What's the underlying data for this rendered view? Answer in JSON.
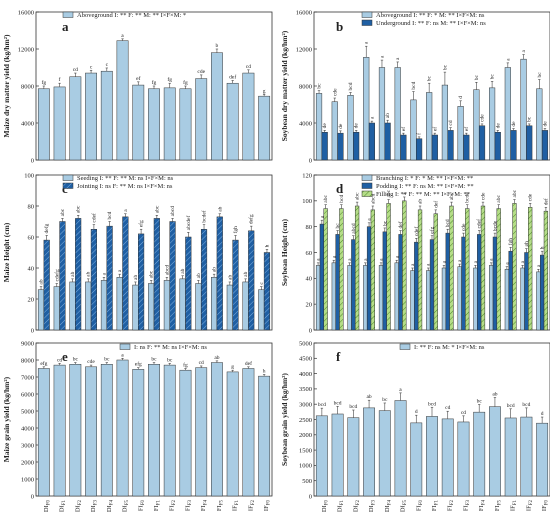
{
  "chart_data": [
    {
      "panel": "a",
      "type": "bar",
      "ylabel": "Maize dry matter yield (kg/hm²)",
      "ylim": [
        0,
        16000
      ],
      "yticks": [
        0,
        4000,
        8000,
        12000,
        16000
      ],
      "grid": false,
      "legend_position": "top",
      "series": [
        {
          "name": "Aboveground",
          "stats": "I: **  F: **  M: **  I×F×M: *",
          "values": [
            7700,
            7900,
            9000,
            9400,
            9600,
            12900,
            8100,
            7700,
            7800,
            7700,
            8800,
            11600,
            8300,
            9400,
            6900
          ],
          "errors": [
            300,
            400,
            400,
            300,
            350,
            200,
            350,
            300,
            500,
            300,
            400,
            400,
            300,
            350,
            200
          ],
          "labels": [
            "fg",
            "f",
            "cd",
            "c",
            "c",
            "a",
            "ef",
            "fg",
            "fg",
            "fg",
            "cde",
            "b",
            "def",
            "cd",
            "g"
          ]
        }
      ]
    },
    {
      "panel": "b",
      "type": "bar",
      "ylabel": "Soybean dry matter yield (kg/hm²)",
      "ylim": [
        0,
        16000
      ],
      "yticks": [
        0,
        4000,
        8000,
        12000,
        16000
      ],
      "grid": false,
      "legend_position": "top",
      "series": [
        {
          "name": "Aboveground",
          "stats": "I: **  F: *   M: **  I×F×M: ns",
          "values": [
            7200,
            6300,
            7000,
            11100,
            10000,
            10000,
            6500,
            7300,
            8100,
            5800,
            7600,
            7800,
            10000,
            10900,
            7700
          ],
          "errors": [
            300,
            400,
            300,
            1200,
            800,
            600,
            900,
            1000,
            1400,
            600,
            800,
            700,
            500,
            500,
            1000
          ],
          "labels": [
            "bc",
            "cde",
            "bcd",
            "a",
            "a",
            "a",
            "bcd",
            "bc",
            "bc",
            "d",
            "bc",
            "bc",
            "a",
            "a",
            "bc"
          ]
        },
        {
          "name": "Underground",
          "stats": "I: **  F: ns  M: **  I×F×M: ns",
          "values": [
            3000,
            2900,
            3000,
            4000,
            4000,
            2700,
            2300,
            2700,
            3200,
            2700,
            3700,
            3000,
            3200,
            3700,
            3200
          ],
          "errors": [
            200,
            250,
            200,
            200,
            300,
            200,
            200,
            200,
            300,
            200,
            200,
            200,
            200,
            200,
            200
          ],
          "labels": [
            "de",
            "de",
            "de",
            "a",
            "ab",
            "ef",
            "f",
            "ef",
            "cd",
            "ef",
            "cde",
            "de",
            "de",
            "bc",
            "de"
          ]
        }
      ]
    },
    {
      "panel": "c",
      "type": "bar",
      "ylabel": "Maize Height (cm)",
      "ylim": [
        0,
        100
      ],
      "yticks": [
        0,
        20,
        40,
        60,
        80,
        100
      ],
      "grid": false,
      "legend_position": "top",
      "series": [
        {
          "name": "Seeding",
          "stats": "I: **  F: **  M: ns   I×F×M: ns",
          "values": [
            26,
            28,
            31,
            31,
            32,
            34,
            29,
            30,
            32,
            33,
            30,
            34,
            29,
            31,
            26
          ],
          "errors": [
            2,
            2,
            2,
            2,
            2,
            2,
            2,
            2,
            2,
            2,
            2,
            2,
            2,
            2,
            2
          ],
          "labels": [
            "ab",
            "cdefg",
            "ab",
            "ab",
            "a",
            "a",
            "ab",
            "abc",
            "abcd",
            "ab",
            "ab",
            "ab",
            "ab",
            "ab",
            "c"
          ]
        },
        {
          "name": "Jointing",
          "stats": "I: ns  F: **  M: ns   I×F×M: ns",
          "values": [
            58,
            70,
            72,
            65,
            67,
            73,
            62,
            72,
            70,
            60,
            65,
            73,
            58,
            64,
            50
          ],
          "errors": [
            3,
            2,
            2,
            3,
            3,
            2,
            3,
            2,
            2,
            3,
            3,
            2,
            3,
            3,
            2
          ],
          "labels": [
            "defg",
            "abc",
            "abc",
            "cdef",
            "bcd",
            "a",
            "efg",
            "abc",
            "abcd",
            "abcdef",
            "bcdef",
            "ab",
            "fgh",
            "defg",
            "h"
          ]
        }
      ]
    },
    {
      "panel": "d",
      "type": "bar",
      "ylabel": "Soybean Height (cm)",
      "ylim": [
        0,
        120
      ],
      "yticks": [
        0,
        20,
        40,
        60,
        80,
        100,
        120
      ],
      "grid": false,
      "legend_position": "top",
      "series": [
        {
          "name": "Branching",
          "stats": "I: *   F: *   M: **  I×F×M: **",
          "values": [
            50,
            52,
            50,
            50,
            50,
            52,
            46,
            46,
            48,
            49,
            48,
            50,
            47,
            48,
            45
          ],
          "errors": [
            2,
            2,
            2,
            2,
            2,
            2,
            2,
            2,
            2,
            2,
            2,
            2,
            2,
            2,
            2
          ],
          "labels": [
            "a",
            "a",
            "a",
            "a",
            "a",
            "a",
            "a",
            "a",
            "a",
            "a",
            "a",
            "a",
            "a",
            "a",
            "a"
          ]
        },
        {
          "name": "Podding",
          "stats": "I: **  F: ns  M: **  I×F×M: **",
          "values": [
            82,
            74,
            70,
            80,
            76,
            74,
            68,
            70,
            75,
            72,
            74,
            72,
            61,
            60,
            58
          ],
          "errors": [
            3,
            3,
            3,
            3,
            3,
            3,
            3,
            3,
            3,
            3,
            3,
            3,
            3,
            3,
            3
          ],
          "labels": [
            "a",
            "bc",
            "abcd",
            "a",
            "bc",
            "def",
            "cdef",
            "efg",
            "bcd",
            "cde",
            "cdef",
            "bcde",
            "fgh",
            "gh",
            "h"
          ]
        },
        {
          "name": "Filling",
          "stats": "I: **  F: **  M: **  I×F×M: **",
          "values": [
            94,
            94,
            96,
            93,
            98,
            100,
            93,
            90,
            96,
            94,
            96,
            94,
            98,
            95,
            92
          ],
          "errors": [
            3,
            3,
            3,
            3,
            3,
            3,
            3,
            3,
            3,
            3,
            3,
            3,
            3,
            3,
            3
          ],
          "labels": [
            "abc",
            "bcd",
            "abc",
            "abcd",
            "abc",
            "a",
            "ab",
            "def",
            "abc",
            "bcde",
            "cde",
            "abc",
            "abc",
            "cde",
            "def"
          ]
        }
      ]
    },
    {
      "panel": "e",
      "type": "bar",
      "ylabel": "Maize grain yield (kg/hm²)",
      "ylim": [
        0,
        9000
      ],
      "yticks": [
        0,
        1000,
        2000,
        3000,
        4000,
        5000,
        6000,
        7000,
        8000,
        9000
      ],
      "grid": false,
      "legend_position": "top",
      "series": [
        {
          "name": "",
          "stats": "I: ns  F: **  M: ns  I×F×M: ns",
          "values": [
            7500,
            7700,
            7750,
            7600,
            7750,
            8000,
            7450,
            7750,
            7700,
            7400,
            7550,
            7850,
            7300,
            7500,
            7050
          ],
          "errors": [
            100,
            100,
            100,
            100,
            100,
            100,
            100,
            100,
            100,
            100,
            100,
            100,
            100,
            100,
            100
          ],
          "labels": [
            "efg",
            "cd",
            "bc",
            "cde",
            "bc",
            "a",
            "efg",
            "bc",
            "bc",
            "fg",
            "cd",
            "ab",
            "g",
            "def",
            "h"
          ]
        }
      ]
    },
    {
      "panel": "f",
      "type": "bar",
      "ylabel": "Soybean grain yield (kg/hm²)",
      "ylim": [
        0,
        5000
      ],
      "yticks": [
        0,
        500,
        1000,
        1500,
        2000,
        2500,
        3000,
        3500,
        4000,
        4500,
        5000
      ],
      "grid": false,
      "legend_position": "top",
      "series": [
        {
          "name": "",
          "stats": "I: **  F: ns  M: *  I×F×M: ns",
          "values": [
            2620,
            2680,
            2560,
            2880,
            2790,
            3120,
            2390,
            2600,
            2520,
            2420,
            2740,
            2920,
            2550,
            2580,
            2380
          ],
          "errors": [
            250,
            250,
            250,
            250,
            250,
            250,
            250,
            300,
            250,
            200,
            250,
            300,
            300,
            300,
            200
          ],
          "labels": [
            "bcd",
            "bcd",
            "bcd",
            "ab",
            "bc",
            "a",
            "d",
            "bcd",
            "cd",
            "cd",
            "bc",
            "ab",
            "bcd",
            "bcd",
            "d"
          ]
        }
      ]
    }
  ],
  "xticks": [
    {
      "base": "DI",
      "sub": "F0"
    },
    {
      "base": "DI",
      "sub": "F1"
    },
    {
      "base": "DI",
      "sub": "F2"
    },
    {
      "base": "DI",
      "sub": "F3"
    },
    {
      "base": "DI",
      "sub": "F4"
    },
    {
      "base": "DI",
      "sub": "F5"
    },
    {
      "base": "FI",
      "sub": "F0"
    },
    {
      "base": "FI",
      "sub": "F1"
    },
    {
      "base": "FI",
      "sub": "F2"
    },
    {
      "base": "FI",
      "sub": "F3"
    },
    {
      "base": "FI",
      "sub": "F4"
    },
    {
      "base": "FI",
      "sub": "F5"
    },
    {
      "base": "IF",
      "sub": "F1"
    },
    {
      "base": "IF",
      "sub": "F2"
    },
    {
      "base": "IF",
      "sub": "F0"
    }
  ],
  "colors": {
    "light": "#a9cce3",
    "dark": "#1f5fa3",
    "green": "#b5dd88",
    "stroke": "#333333"
  }
}
